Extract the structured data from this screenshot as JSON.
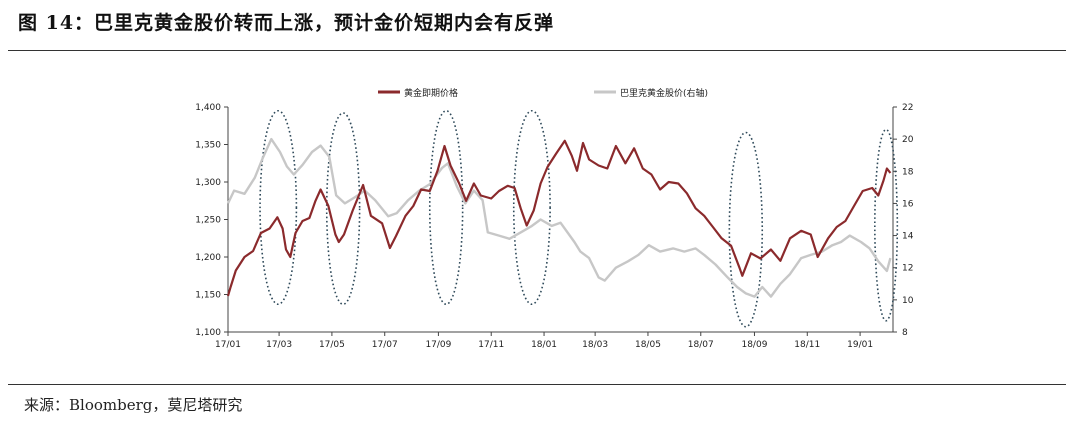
{
  "figure": {
    "title": "图 14：巴里克黄金股价转而上涨，预计金价短期内会有反弹",
    "source": "来源：Bloomberg，莫尼塔研究"
  },
  "chart_data": {
    "type": "line",
    "legend_position": "top",
    "grid": false,
    "x_ticks": [
      "17/01",
      "17/03",
      "17/05",
      "17/07",
      "17/09",
      "17/11",
      "18/01",
      "18/03",
      "18/05",
      "18/07",
      "18/09",
      "18/11",
      "19/01"
    ],
    "x_range": [
      "2017-01-01",
      "2019-02-08"
    ],
    "y_left": {
      "min": 1100,
      "max": 1400,
      "ticks": [
        "1,100",
        "1,150",
        "1,200",
        "1,250",
        "1,300",
        "1,350",
        "1,400"
      ]
    },
    "y_right": {
      "min": 8,
      "max": 22,
      "ticks": [
        "8",
        "10",
        "12",
        "14",
        "16",
        "18",
        "20",
        "22"
      ]
    },
    "series": [
      {
        "name": "黄金即期价格",
        "axis": "left",
        "color": "#8b2a2c",
        "points": [
          [
            "2017-01-01",
            1148
          ],
          [
            "2017-01-04",
            1160
          ],
          [
            "2017-01-10",
            1182
          ],
          [
            "2017-01-20",
            1200
          ],
          [
            "2017-01-30",
            1208
          ],
          [
            "2017-02-08",
            1232
          ],
          [
            "2017-02-18",
            1238
          ],
          [
            "2017-02-27",
            1253
          ],
          [
            "2017-03-05",
            1238
          ],
          [
            "2017-03-09",
            1210
          ],
          [
            "2017-03-14",
            1200
          ],
          [
            "2017-03-20",
            1232
          ],
          [
            "2017-03-28",
            1248
          ],
          [
            "2017-04-05",
            1252
          ],
          [
            "2017-04-12",
            1275
          ],
          [
            "2017-04-18",
            1290
          ],
          [
            "2017-04-27",
            1268
          ],
          [
            "2017-05-05",
            1230
          ],
          [
            "2017-05-09",
            1220
          ],
          [
            "2017-05-15",
            1230
          ],
          [
            "2017-05-25",
            1262
          ],
          [
            "2017-06-06",
            1296
          ],
          [
            "2017-06-15",
            1255
          ],
          [
            "2017-06-28",
            1245
          ],
          [
            "2017-07-07",
            1212
          ],
          [
            "2017-07-14",
            1228
          ],
          [
            "2017-07-25",
            1255
          ],
          [
            "2017-08-03",
            1268
          ],
          [
            "2017-08-12",
            1290
          ],
          [
            "2017-08-22",
            1288
          ],
          [
            "2017-08-31",
            1315
          ],
          [
            "2017-09-08",
            1348
          ],
          [
            "2017-09-15",
            1322
          ],
          [
            "2017-09-25",
            1298
          ],
          [
            "2017-10-03",
            1275
          ],
          [
            "2017-10-12",
            1298
          ],
          [
            "2017-10-20",
            1282
          ],
          [
            "2017-11-01",
            1278
          ],
          [
            "2017-11-10",
            1288
          ],
          [
            "2017-11-20",
            1295
          ],
          [
            "2017-11-28",
            1292
          ],
          [
            "2017-12-05",
            1265
          ],
          [
            "2017-12-12",
            1242
          ],
          [
            "2017-12-20",
            1262
          ],
          [
            "2017-12-28",
            1298
          ],
          [
            "2018-01-05",
            1320
          ],
          [
            "2018-01-15",
            1338
          ],
          [
            "2018-01-25",
            1355
          ],
          [
            "2018-02-02",
            1335
          ],
          [
            "2018-02-08",
            1315
          ],
          [
            "2018-02-15",
            1352
          ],
          [
            "2018-02-22",
            1330
          ],
          [
            "2018-03-05",
            1322
          ],
          [
            "2018-03-15",
            1318
          ],
          [
            "2018-03-25",
            1348
          ],
          [
            "2018-04-05",
            1325
          ],
          [
            "2018-04-15",
            1345
          ],
          [
            "2018-04-25",
            1318
          ],
          [
            "2018-05-05",
            1310
          ],
          [
            "2018-05-15",
            1290
          ],
          [
            "2018-05-25",
            1300
          ],
          [
            "2018-06-05",
            1298
          ],
          [
            "2018-06-15",
            1285
          ],
          [
            "2018-06-25",
            1265
          ],
          [
            "2018-07-05",
            1255
          ],
          [
            "2018-07-15",
            1240
          ],
          [
            "2018-07-25",
            1225
          ],
          [
            "2018-08-05",
            1215
          ],
          [
            "2018-08-15",
            1185
          ],
          [
            "2018-08-18",
            1175
          ],
          [
            "2018-08-28",
            1205
          ],
          [
            "2018-09-08",
            1198
          ],
          [
            "2018-09-20",
            1210
          ],
          [
            "2018-10-01",
            1195
          ],
          [
            "2018-10-12",
            1225
          ],
          [
            "2018-10-25",
            1235
          ],
          [
            "2018-11-05",
            1230
          ],
          [
            "2018-11-13",
            1200
          ],
          [
            "2018-11-25",
            1225
          ],
          [
            "2018-12-05",
            1240
          ],
          [
            "2018-12-15",
            1248
          ],
          [
            "2018-12-25",
            1268
          ],
          [
            "2019-01-04",
            1288
          ],
          [
            "2019-01-15",
            1292
          ],
          [
            "2019-01-22",
            1282
          ],
          [
            "2019-01-28",
            1302
          ],
          [
            "2019-02-01",
            1318
          ],
          [
            "2019-02-05",
            1312
          ]
        ]
      },
      {
        "name": "巴里克黄金股价(右轴)",
        "axis": "right",
        "color": "#c7c7c7",
        "points": [
          [
            "2017-01-01",
            16.0
          ],
          [
            "2017-01-08",
            16.8
          ],
          [
            "2017-01-20",
            16.6
          ],
          [
            "2017-02-01",
            17.6
          ],
          [
            "2017-02-10",
            18.8
          ],
          [
            "2017-02-20",
            20.0
          ],
          [
            "2017-03-02",
            19.2
          ],
          [
            "2017-03-10",
            18.3
          ],
          [
            "2017-03-18",
            17.8
          ],
          [
            "2017-03-28",
            18.4
          ],
          [
            "2017-04-08",
            19.2
          ],
          [
            "2017-04-18",
            19.6
          ],
          [
            "2017-04-28",
            18.9
          ],
          [
            "2017-05-06",
            16.5
          ],
          [
            "2017-05-16",
            16.0
          ],
          [
            "2017-05-28",
            16.4
          ],
          [
            "2017-06-08",
            16.8
          ],
          [
            "2017-06-20",
            16.2
          ],
          [
            "2017-07-05",
            15.2
          ],
          [
            "2017-07-15",
            15.4
          ],
          [
            "2017-07-28",
            16.2
          ],
          [
            "2017-08-10",
            16.8
          ],
          [
            "2017-08-22",
            17.2
          ],
          [
            "2017-09-05",
            18.2
          ],
          [
            "2017-09-12",
            18.5
          ],
          [
            "2017-09-22",
            17.1
          ],
          [
            "2017-10-02",
            16.0
          ],
          [
            "2017-10-12",
            16.8
          ],
          [
            "2017-10-22",
            16.2
          ],
          [
            "2017-10-28",
            14.2
          ],
          [
            "2017-11-10",
            14.0
          ],
          [
            "2017-11-22",
            13.8
          ],
          [
            "2017-12-05",
            14.2
          ],
          [
            "2017-12-18",
            14.6
          ],
          [
            "2017-12-28",
            15.0
          ],
          [
            "2018-01-10",
            14.6
          ],
          [
            "2018-01-20",
            14.8
          ],
          [
            "2018-02-05",
            13.6
          ],
          [
            "2018-02-12",
            13.0
          ],
          [
            "2018-02-22",
            12.6
          ],
          [
            "2018-03-05",
            11.4
          ],
          [
            "2018-03-12",
            11.2
          ],
          [
            "2018-03-25",
            12.0
          ],
          [
            "2018-04-08",
            12.4
          ],
          [
            "2018-04-20",
            12.8
          ],
          [
            "2018-05-02",
            13.4
          ],
          [
            "2018-05-15",
            13.0
          ],
          [
            "2018-05-30",
            13.2
          ],
          [
            "2018-06-12",
            13.0
          ],
          [
            "2018-06-25",
            13.2
          ],
          [
            "2018-07-05",
            12.8
          ],
          [
            "2018-07-18",
            12.2
          ],
          [
            "2018-08-01",
            11.4
          ],
          [
            "2018-08-12",
            10.8
          ],
          [
            "2018-08-22",
            10.4
          ],
          [
            "2018-09-01",
            10.2
          ],
          [
            "2018-09-10",
            10.8
          ],
          [
            "2018-09-20",
            10.2
          ],
          [
            "2018-10-01",
            11.0
          ],
          [
            "2018-10-12",
            11.6
          ],
          [
            "2018-10-25",
            12.6
          ],
          [
            "2018-11-05",
            12.8
          ],
          [
            "2018-11-18",
            13.0
          ],
          [
            "2018-11-30",
            13.4
          ],
          [
            "2018-12-10",
            13.6
          ],
          [
            "2018-12-20",
            14.0
          ],
          [
            "2019-01-02",
            13.6
          ],
          [
            "2019-01-12",
            13.2
          ],
          [
            "2019-01-22",
            12.4
          ],
          [
            "2019-02-01",
            11.8
          ],
          [
            "2019-02-05",
            12.6
          ]
        ]
      }
    ],
    "annotations": [
      {
        "type": "ellipse",
        "center": "2017-02-28",
        "halfwidth_days": 21,
        "y": [
          1137,
          1395
        ]
      },
      {
        "type": "ellipse",
        "center": "2017-05-14",
        "halfwidth_days": 19,
        "y": [
          1137,
          1392
        ]
      },
      {
        "type": "ellipse",
        "center": "2017-09-10",
        "halfwidth_days": 19,
        "y": [
          1137,
          1395
        ]
      },
      {
        "type": "ellipse",
        "center": "2017-12-18",
        "halfwidth_days": 21,
        "y": [
          1137,
          1395
        ]
      },
      {
        "type": "ellipse",
        "center": "2018-08-22",
        "halfwidth_days": 19,
        "y": [
          1107,
          1366
        ]
      },
      {
        "type": "ellipse",
        "center": "2019-01-31",
        "halfwidth_days": 13,
        "y": [
          1115,
          1370
        ]
      }
    ]
  }
}
